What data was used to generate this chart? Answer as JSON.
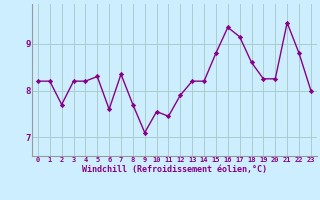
{
  "x": [
    0,
    1,
    2,
    3,
    4,
    5,
    6,
    7,
    8,
    9,
    10,
    11,
    12,
    13,
    14,
    15,
    16,
    17,
    18,
    19,
    20,
    21,
    22,
    23
  ],
  "y": [
    8.2,
    8.2,
    7.7,
    8.2,
    8.2,
    8.3,
    7.6,
    8.35,
    7.7,
    7.1,
    7.55,
    7.45,
    7.9,
    8.2,
    8.2,
    8.8,
    9.35,
    9.15,
    8.6,
    8.25,
    8.25,
    9.45,
    8.8,
    8.0
  ],
  "line_color": "#880088",
  "marker": "D",
  "marker_size": 2.2,
  "bg_color": "#cceeff",
  "grid_color": "#aacccc",
  "xlabel": "Windchill (Refroidissement éolien,°C)",
  "xlabel_fontsize": 6.0,
  "xtick_fontsize": 5.0,
  "ytick_fontsize": 6.5,
  "yticks": [
    7,
    8,
    9
  ],
  "ylim": [
    6.6,
    9.85
  ],
  "xlim": [
    -0.5,
    23.5
  ],
  "linewidth": 1.0,
  "title_color": "#880088"
}
